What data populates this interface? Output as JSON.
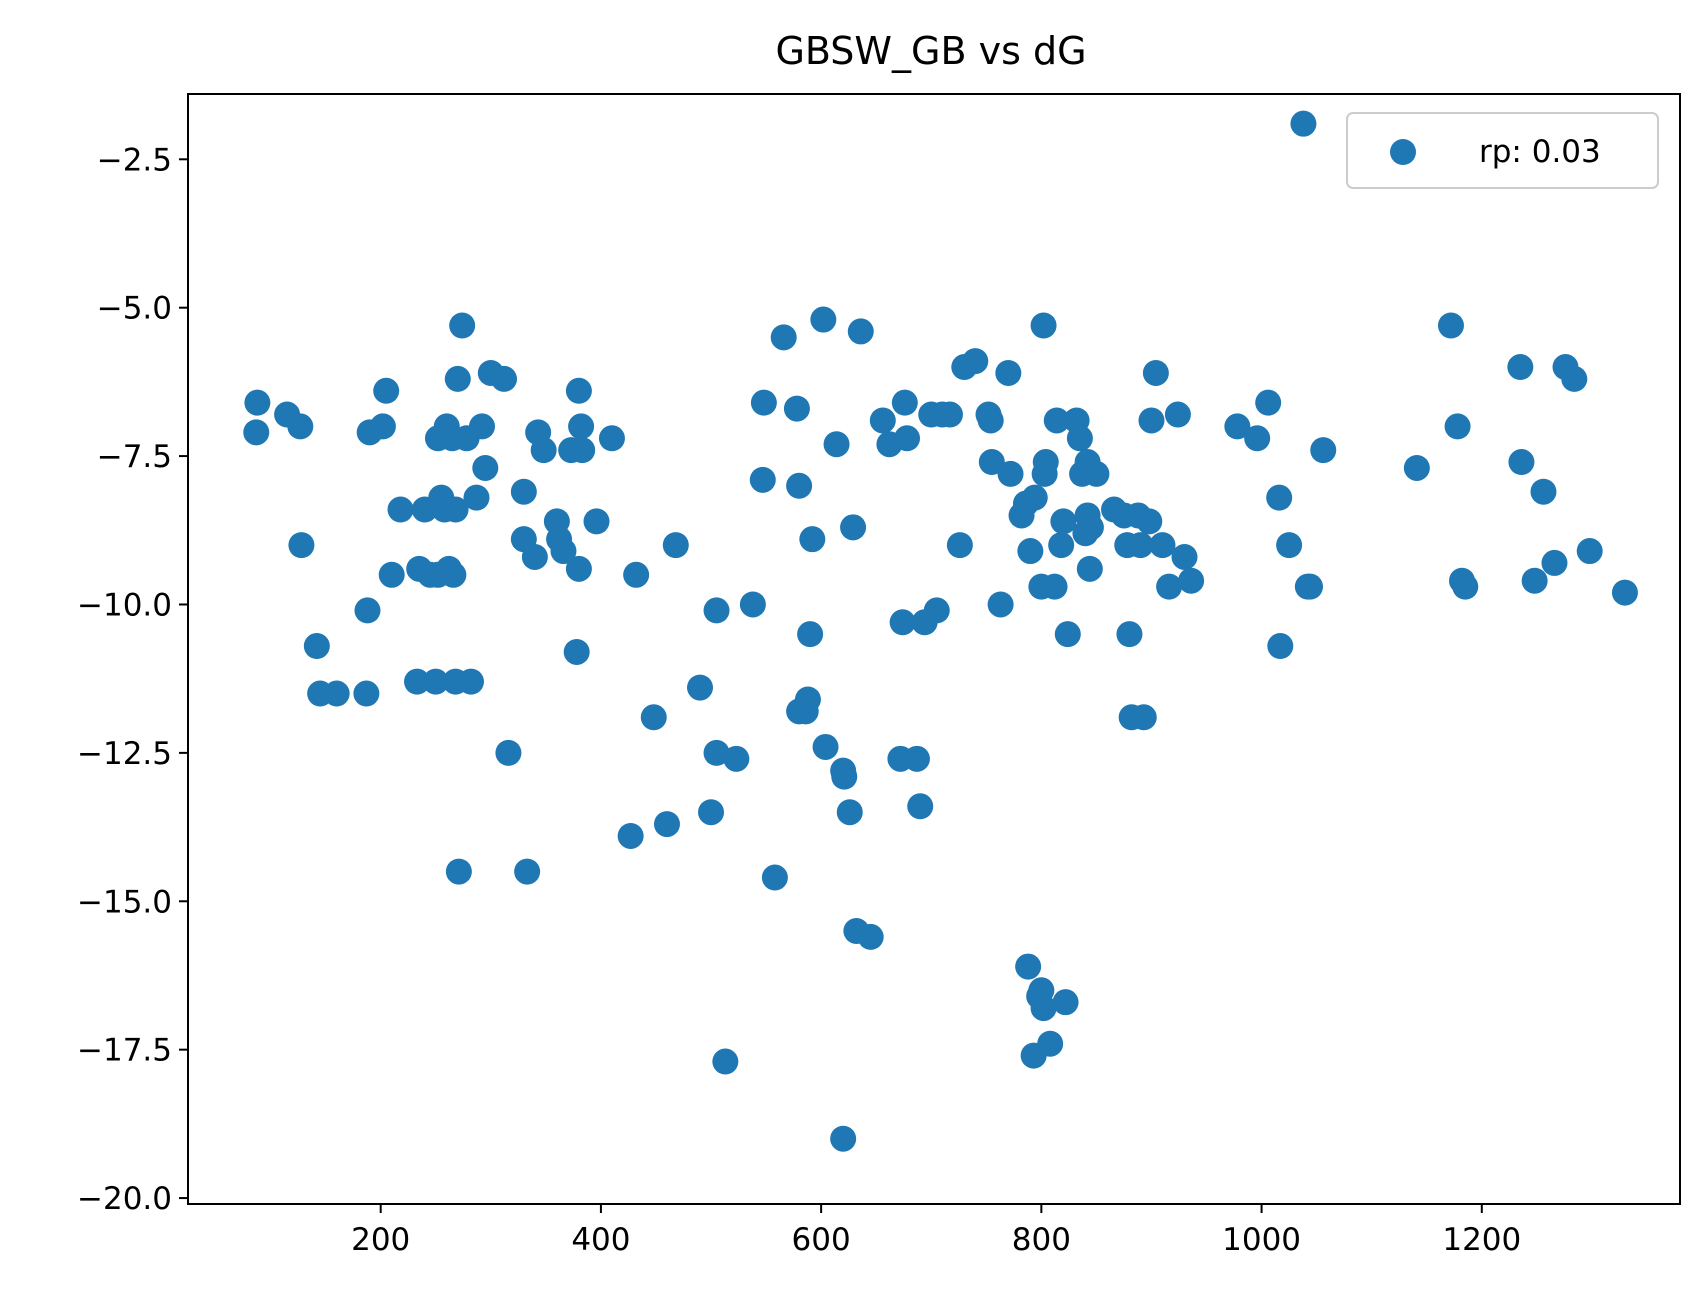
{
  "chart_data": {
    "type": "scatter",
    "title": "GBSW_GB vs dG",
    "xlabel": "",
    "ylabel": "",
    "xlim": [
      25,
      1380
    ],
    "ylim": [
      -20.1,
      -1.4
    ],
    "xticks": [
      200,
      400,
      600,
      800,
      1000,
      1200
    ],
    "xtick_labels": [
      "200",
      "400",
      "600",
      "800",
      "1000",
      "1200"
    ],
    "yticks": [
      -2.5,
      -5.0,
      -7.5,
      -10.0,
      -12.5,
      -15.0,
      -17.5,
      -20.0
    ],
    "ytick_labels": [
      "−2.5",
      "−5.0",
      "−7.5",
      "−10.0",
      "−12.5",
      "−15.0",
      "−17.5",
      "−20.0"
    ],
    "grid": false,
    "legend": {
      "position": "upper right",
      "entries": [
        "rp: 0.03"
      ]
    },
    "series": [
      {
        "name": "rp: 0.03",
        "color": "#1f77b4",
        "marker": "circle",
        "points": [
          [
            88,
            -6.6
          ],
          [
            87,
            -7.1
          ],
          [
            115,
            -6.8
          ],
          [
            127,
            -7.0
          ],
          [
            128,
            -9.0
          ],
          [
            142,
            -10.7
          ],
          [
            145,
            -11.5
          ],
          [
            160,
            -11.5
          ],
          [
            187,
            -11.5
          ],
          [
            188,
            -10.1
          ],
          [
            190,
            -7.1
          ],
          [
            202,
            -7.0
          ],
          [
            205,
            -6.4
          ],
          [
            210,
            -9.5
          ],
          [
            218,
            -8.4
          ],
          [
            233,
            -11.3
          ],
          [
            235,
            -9.4
          ],
          [
            240,
            -8.4
          ],
          [
            245,
            -9.5
          ],
          [
            250,
            -11.3
          ],
          [
            252,
            -7.2
          ],
          [
            252,
            -9.5
          ],
          [
            255,
            -8.2
          ],
          [
            258,
            -8.4
          ],
          [
            260,
            -7.0
          ],
          [
            262,
            -9.4
          ],
          [
            265,
            -7.2
          ],
          [
            266,
            -9.5
          ],
          [
            268,
            -11.3
          ],
          [
            268,
            -8.4
          ],
          [
            270,
            -6.2
          ],
          [
            271,
            -14.5
          ],
          [
            274,
            -5.3
          ],
          [
            278,
            -7.2
          ],
          [
            282,
            -11.3
          ],
          [
            287,
            -8.2
          ],
          [
            292,
            -7.0
          ],
          [
            295,
            -7.7
          ],
          [
            300,
            -6.1
          ],
          [
            312,
            -6.2
          ],
          [
            316,
            -12.5
          ],
          [
            330,
            -8.1
          ],
          [
            330,
            -8.9
          ],
          [
            333,
            -14.5
          ],
          [
            340,
            -9.2
          ],
          [
            343,
            -7.1
          ],
          [
            348,
            -7.4
          ],
          [
            360,
            -8.6
          ],
          [
            362,
            -8.9
          ],
          [
            366,
            -9.1
          ],
          [
            373,
            -7.4
          ],
          [
            378,
            -10.8
          ],
          [
            380,
            -6.4
          ],
          [
            380,
            -9.4
          ],
          [
            382,
            -7.0
          ],
          [
            383,
            -7.4
          ],
          [
            396,
            -8.6
          ],
          [
            410,
            -7.2
          ],
          [
            427,
            -13.9
          ],
          [
            432,
            -9.5
          ],
          [
            448,
            -11.9
          ],
          [
            460,
            -13.7
          ],
          [
            468,
            -9.0
          ],
          [
            490,
            -11.4
          ],
          [
            500,
            -13.5
          ],
          [
            505,
            -10.1
          ],
          [
            505,
            -12.5
          ],
          [
            513,
            -17.7
          ],
          [
            523,
            -12.6
          ],
          [
            538,
            -10.0
          ],
          [
            547,
            -7.9
          ],
          [
            548,
            -6.6
          ],
          [
            558,
            -14.6
          ],
          [
            566,
            -5.5
          ],
          [
            578,
            -6.7
          ],
          [
            580,
            -11.8
          ],
          [
            580,
            -8.0
          ],
          [
            586,
            -11.8
          ],
          [
            588,
            -11.6
          ],
          [
            590,
            -10.5
          ],
          [
            592,
            -8.9
          ],
          [
            602,
            -5.2
          ],
          [
            604,
            -12.4
          ],
          [
            614,
            -7.3
          ],
          [
            620,
            -12.8
          ],
          [
            620,
            -19.0
          ],
          [
            621,
            -12.9
          ],
          [
            626,
            -13.5
          ],
          [
            629,
            -8.7
          ],
          [
            632,
            -15.5
          ],
          [
            636,
            -5.4
          ],
          [
            645,
            -15.6
          ],
          [
            656,
            -6.9
          ],
          [
            662,
            -7.3
          ],
          [
            672,
            -12.6
          ],
          [
            674,
            -10.3
          ],
          [
            676,
            -6.6
          ],
          [
            678,
            -7.2
          ],
          [
            687,
            -12.6
          ],
          [
            690,
            -13.4
          ],
          [
            694,
            -10.3
          ],
          [
            700,
            -6.8
          ],
          [
            705,
            -10.1
          ],
          [
            710,
            -6.8
          ],
          [
            717,
            -6.8
          ],
          [
            726,
            -9.0
          ],
          [
            730,
            -6.0
          ],
          [
            740,
            -5.9
          ],
          [
            752,
            -6.8
          ],
          [
            754,
            -6.9
          ],
          [
            755,
            -7.6
          ],
          [
            763,
            -10.0
          ],
          [
            770,
            -6.1
          ],
          [
            772,
            -7.8
          ],
          [
            782,
            -8.5
          ],
          [
            786,
            -8.3
          ],
          [
            788,
            -16.1
          ],
          [
            790,
            -9.1
          ],
          [
            793,
            -17.6
          ],
          [
            794,
            -8.2
          ],
          [
            798,
            -16.6
          ],
          [
            800,
            -16.5
          ],
          [
            800,
            -9.7
          ],
          [
            802,
            -5.3
          ],
          [
            802,
            -16.8
          ],
          [
            803,
            -7.8
          ],
          [
            804,
            -7.6
          ],
          [
            808,
            -17.4
          ],
          [
            812,
            -9.7
          ],
          [
            814,
            -6.9
          ],
          [
            818,
            -9.0
          ],
          [
            820,
            -8.6
          ],
          [
            822,
            -16.7
          ],
          [
            824,
            -10.5
          ],
          [
            832,
            -6.9
          ],
          [
            835,
            -7.2
          ],
          [
            837,
            -7.8
          ],
          [
            840,
            -8.8
          ],
          [
            842,
            -8.5
          ],
          [
            842,
            -7.6
          ],
          [
            844,
            -9.4
          ],
          [
            845,
            -8.7
          ],
          [
            850,
            -7.8
          ],
          [
            866,
            -8.4
          ],
          [
            875,
            -8.5
          ],
          [
            878,
            -9.0
          ],
          [
            880,
            -10.5
          ],
          [
            882,
            -11.9
          ],
          [
            888,
            -8.5
          ],
          [
            890,
            -9.0
          ],
          [
            893,
            -11.9
          ],
          [
            898,
            -8.6
          ],
          [
            900,
            -6.9
          ],
          [
            904,
            -6.1
          ],
          [
            910,
            -9.0
          ],
          [
            916,
            -9.7
          ],
          [
            924,
            -6.8
          ],
          [
            930,
            -9.2
          ],
          [
            936,
            -9.6
          ],
          [
            978,
            -7.0
          ],
          [
            996,
            -7.2
          ],
          [
            1006,
            -6.6
          ],
          [
            1016,
            -8.2
          ],
          [
            1017,
            -10.7
          ],
          [
            1025,
            -9.0
          ],
          [
            1038,
            -1.9
          ],
          [
            1042,
            -9.7
          ],
          [
            1044,
            -9.7
          ],
          [
            1056,
            -7.4
          ],
          [
            1141,
            -7.7
          ],
          [
            1172,
            -5.3
          ],
          [
            1178,
            -7.0
          ],
          [
            1182,
            -9.6
          ],
          [
            1185,
            -9.7
          ],
          [
            1235,
            -6.0
          ],
          [
            1236,
            -7.6
          ],
          [
            1248,
            -9.6
          ],
          [
            1256,
            -8.1
          ],
          [
            1266,
            -9.3
          ],
          [
            1276,
            -6.0
          ],
          [
            1284,
            -6.2
          ],
          [
            1298,
            -9.1
          ],
          [
            1330,
            -9.8
          ]
        ]
      }
    ]
  }
}
